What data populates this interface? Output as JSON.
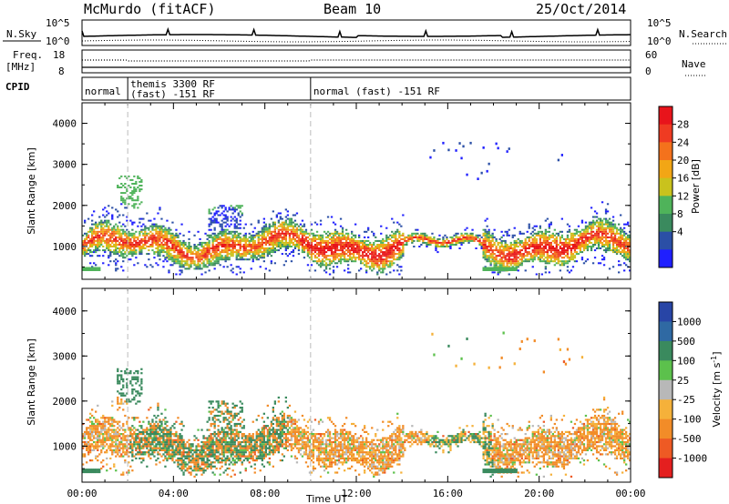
{
  "header": {
    "station": "McMurdo (fitACF)",
    "beam": "Beam 10",
    "date": "25/Oct/2014"
  },
  "top_panel": {
    "nsky_label": "N.Sky",
    "nsky_ticks": [
      "10^5",
      "10^0"
    ],
    "nsearch_label": "N.Search",
    "nsearch_ticks": [
      "10^5",
      "10^0"
    ],
    "freq_label_1": "Freq.",
    "freq_label_2": "[MHz]",
    "freq_ticks": [
      "18",
      "8"
    ],
    "nave_label": "Nave",
    "nave_ticks": [
      "60",
      "0"
    ],
    "cpid_label": "CPID",
    "cpid_segments": [
      {
        "start_hour": 0.0,
        "end_hour": 2.0,
        "lines": [
          "normal"
        ]
      },
      {
        "start_hour": 2.0,
        "end_hour": 10.0,
        "lines": [
          "themis 3300 RF",
          "(fast) -151 RF"
        ]
      },
      {
        "start_hour": 10.0,
        "end_hour": 24.0,
        "lines": [
          "normal (fast) -151 RF"
        ]
      }
    ]
  },
  "colors": {
    "power_scale": [
      "#1f1fff",
      "#2b4fa6",
      "#3a8a5e",
      "#4fb35a",
      "#c9c21d",
      "#f2a615",
      "#f4721c",
      "#ef3b22",
      "#e8141b"
    ],
    "velocity_scale": [
      "#2845a6",
      "#2f69a3",
      "#3a8a5e",
      "#5cc14c",
      "#b8b8b8",
      "#f5b13a",
      "#f28c28",
      "#ee5a24",
      "#e41f1f"
    ]
  },
  "chart_data": [
    {
      "type": "heatmap",
      "title": "",
      "xlabel": "",
      "ylabel": "Slant Range [km]",
      "xlim": [
        0,
        24
      ],
      "ylim": [
        200,
        4500
      ],
      "yticks": [
        "1000",
        "2000",
        "3000",
        "4000"
      ],
      "colorbar": {
        "label": "Power [dB]",
        "ticks": [
          "28",
          "24",
          "20",
          "16",
          "12",
          "8",
          "4"
        ],
        "range": [
          0,
          30
        ]
      }
    },
    {
      "type": "heatmap",
      "title": "",
      "xlabel": "Time UT",
      "ylabel": "Slant Range [km]",
      "xlim": [
        0,
        24
      ],
      "ylim": [
        200,
        4500
      ],
      "xticks": [
        "00:00",
        "04:00",
        "08:00",
        "12:00",
        "16:00",
        "20:00",
        "00:00"
      ],
      "yticks": [
        "1000",
        "2000",
        "3000",
        "4000"
      ],
      "colorbar": {
        "label": "Velocity [m s",
        "label_sup": "-1",
        "label_end": "]",
        "ticks": [
          "1000",
          "500",
          "100",
          "25",
          "-25",
          "-100",
          "-500",
          "-1000"
        ]
      }
    }
  ]
}
